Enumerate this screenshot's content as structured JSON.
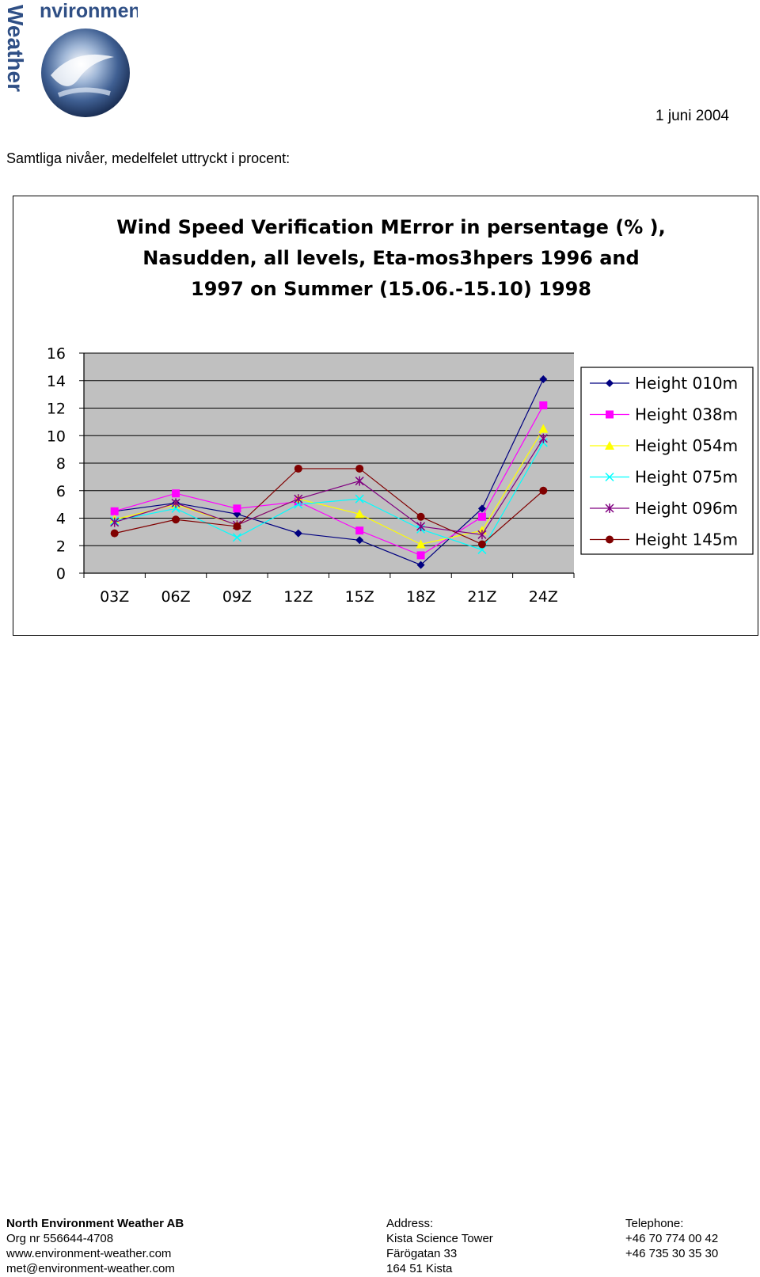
{
  "header": {
    "logo_text": "Environment Weather",
    "date": "1 juni 2004"
  },
  "intro": "Samtliga nivåer, medelfelet uttryckt i procent:",
  "chart_data": {
    "type": "line",
    "title_lines": [
      "Wind Speed Verification MError in persentage (% ),",
      "Nasudden, all levels, Eta-mos3hpers 1996 and",
      "1997 on Summer (15.06.-15.10) 1998"
    ],
    "categories": [
      "03Z",
      "06Z",
      "09Z",
      "12Z",
      "15Z",
      "18Z",
      "21Z",
      "24Z"
    ],
    "yticks": [
      "0",
      "2",
      "4",
      "6",
      "8",
      "10",
      "12",
      "14",
      "16"
    ],
    "ylim": [
      0,
      16
    ],
    "grid": "horizontal",
    "legend_position": "right",
    "plot_background": "#c0c0c0",
    "series": [
      {
        "name": "Height 010m",
        "color": "#000080",
        "marker": "diamond",
        "values": [
          4.5,
          5.1,
          4.3,
          2.9,
          2.4,
          0.6,
          4.7,
          14.1
        ]
      },
      {
        "name": "Height 038m",
        "color": "#ff00ff",
        "marker": "square",
        "values": [
          4.5,
          5.8,
          4.7,
          5.2,
          3.1,
          1.3,
          4.1,
          12.2
        ]
      },
      {
        "name": "Height 054m",
        "color": "#ffff00",
        "marker": "triangle",
        "values": [
          3.9,
          5.0,
          3.5,
          5.4,
          4.3,
          2.1,
          3.1,
          10.5
        ]
      },
      {
        "name": "Height 075m",
        "color": "#00ffff",
        "marker": "x",
        "values": [
          3.8,
          4.7,
          2.6,
          5.0,
          5.4,
          3.2,
          1.7,
          9.5
        ]
      },
      {
        "name": "Height 096m",
        "color": "#800080",
        "marker": "star",
        "values": [
          3.7,
          5.1,
          3.5,
          5.4,
          6.7,
          3.4,
          2.8,
          9.8
        ]
      },
      {
        "name": "Height 145m",
        "color": "#800000",
        "marker": "circle",
        "values": [
          2.9,
          3.9,
          3.4,
          7.6,
          7.6,
          4.1,
          2.1,
          6.0
        ]
      }
    ]
  },
  "footer": {
    "company": "North Environment Weather AB",
    "org_nr": "Org nr 556644-4708",
    "website": "www.environment-weather.com",
    "email": "met@environment-weather.com",
    "address_label": "Address:",
    "address_line1": "Kista Science Tower",
    "address_line2": "Färögatan 33",
    "address_line3": "164 51 Kista",
    "telephone_label": "Telephone:",
    "phone1": "+46 70 774 00 42",
    "phone2": "+46 735 30 35 30"
  }
}
